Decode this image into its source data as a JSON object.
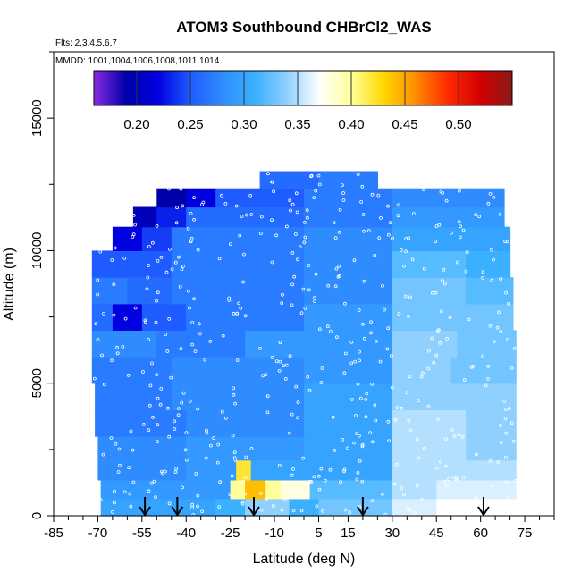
{
  "chart_data": {
    "type": "heatmap",
    "title": "ATOM3 Southbound CHBrCl2_WAS",
    "flights_note": "Flts: 2,3,4,5,6,7",
    "dates_note": "MMDD: 1001,1004,1006,1008,1011,1014",
    "xlabel": "Latitude (deg N)",
    "ylabel": "Altitude (m)",
    "xlim": [
      -85,
      85
    ],
    "ylim": [
      0,
      17500
    ],
    "x_ticks": [
      -85,
      -70,
      -55,
      -40,
      -25,
      -10,
      5,
      15,
      30,
      45,
      60,
      75
    ],
    "y_ticks": [
      0,
      5000,
      10000,
      15000
    ],
    "colorbar": {
      "min": 0.16,
      "max": 0.55,
      "ticks": [
        0.2,
        0.25,
        0.3,
        0.35,
        0.4,
        0.45,
        0.5
      ],
      "tick_labels": [
        "0.20",
        "0.25",
        "0.30",
        "0.35",
        "0.40",
        "0.45",
        "0.50"
      ],
      "colors": [
        "#8a2be2",
        "#0000a8",
        "#0000e0",
        "#1e5cff",
        "#2f8cff",
        "#3ab0ff",
        "#8fd0ff",
        "#ffffff",
        "#ffff99",
        "#ffd700",
        "#ff8c00",
        "#ff2a00",
        "#d40000",
        "#8b1a1a"
      ]
    },
    "profile_arrows_lat": [
      -54,
      -43,
      -17,
      20,
      61
    ],
    "bands": [
      {
        "alt": 300,
        "segments": [
          [
            -69,
            -55,
            0.3
          ],
          [
            -55,
            -30,
            0.3
          ],
          [
            -30,
            -20,
            0.31
          ],
          [
            -20,
            -5,
            0.34
          ],
          [
            -5,
            5,
            0.31
          ],
          [
            5,
            30,
            0.33
          ],
          [
            30,
            45,
            0.36
          ],
          [
            45,
            72,
            0.37
          ]
        ]
      },
      {
        "alt": 1000,
        "segments": [
          [
            -69,
            -55,
            0.29
          ],
          [
            -55,
            -25,
            0.29
          ],
          [
            -25,
            -20,
            0.4
          ],
          [
            -20,
            -13,
            0.44
          ],
          [
            -13,
            -8,
            0.4
          ],
          [
            -8,
            2,
            0.38
          ],
          [
            2,
            30,
            0.32
          ],
          [
            30,
            45,
            0.35
          ],
          [
            45,
            72,
            0.36
          ]
        ]
      },
      {
        "alt": 1700,
        "segments": [
          [
            -70,
            -40,
            0.28
          ],
          [
            -40,
            -23,
            0.29
          ],
          [
            -23,
            -18,
            0.42
          ],
          [
            -18,
            30,
            0.3
          ],
          [
            30,
            50,
            0.35
          ],
          [
            50,
            72,
            0.35
          ]
        ]
      },
      {
        "alt": 2500,
        "segments": [
          [
            -70,
            -40,
            0.28
          ],
          [
            -40,
            0,
            0.29
          ],
          [
            0,
            30,
            0.3
          ],
          [
            30,
            55,
            0.35
          ],
          [
            55,
            72,
            0.34
          ]
        ]
      },
      {
        "alt": 3500,
        "segments": [
          [
            -71,
            -40,
            0.27
          ],
          [
            -40,
            0,
            0.28
          ],
          [
            0,
            30,
            0.3
          ],
          [
            30,
            55,
            0.35
          ],
          [
            55,
            72,
            0.34
          ]
        ]
      },
      {
        "alt": 4500,
        "segments": [
          [
            -71,
            -45,
            0.27
          ],
          [
            -45,
            0,
            0.28
          ],
          [
            0,
            30,
            0.3
          ],
          [
            30,
            55,
            0.34
          ],
          [
            55,
            72,
            0.34
          ]
        ]
      },
      {
        "alt": 5500,
        "segments": [
          [
            -72,
            -45,
            0.27
          ],
          [
            -45,
            0,
            0.28
          ],
          [
            0,
            30,
            0.29
          ],
          [
            30,
            50,
            0.34
          ],
          [
            50,
            72,
            0.33
          ]
        ]
      },
      {
        "alt": 6500,
        "segments": [
          [
            -72,
            -50,
            0.28
          ],
          [
            -50,
            -20,
            0.27
          ],
          [
            -20,
            30,
            0.29
          ],
          [
            30,
            52,
            0.34
          ],
          [
            52,
            72,
            0.33
          ]
        ]
      },
      {
        "alt": 7500,
        "segments": [
          [
            -72,
            -65,
            0.26
          ],
          [
            -65,
            -55,
            0.22
          ],
          [
            -55,
            -40,
            0.25
          ],
          [
            -40,
            0,
            0.27
          ],
          [
            0,
            30,
            0.29
          ],
          [
            30,
            50,
            0.33
          ],
          [
            50,
            71,
            0.33
          ]
        ]
      },
      {
        "alt": 8500,
        "segments": [
          [
            -72,
            -60,
            0.27
          ],
          [
            -60,
            -45,
            0.26
          ],
          [
            -45,
            0,
            0.27
          ],
          [
            0,
            30,
            0.28
          ],
          [
            30,
            55,
            0.33
          ],
          [
            55,
            71,
            0.32
          ]
        ]
      },
      {
        "alt": 9500,
        "segments": [
          [
            -72,
            -60,
            0.25
          ],
          [
            -60,
            -45,
            0.25
          ],
          [
            -45,
            0,
            0.27
          ],
          [
            0,
            30,
            0.28
          ],
          [
            30,
            55,
            0.32
          ],
          [
            55,
            70,
            0.31
          ]
        ]
      },
      {
        "alt": 10500,
        "segments": [
          [
            -65,
            -55,
            0.22
          ],
          [
            -55,
            -45,
            0.24
          ],
          [
            -45,
            0,
            0.27
          ],
          [
            0,
            30,
            0.28
          ],
          [
            30,
            60,
            0.3
          ],
          [
            60,
            70,
            0.3
          ]
        ]
      },
      {
        "alt": 11300,
        "segments": [
          [
            -58,
            -50,
            0.2
          ],
          [
            -50,
            -40,
            0.23
          ],
          [
            -40,
            0,
            0.26
          ],
          [
            0,
            30,
            0.27
          ],
          [
            30,
            55,
            0.29
          ],
          [
            55,
            68,
            0.29
          ]
        ]
      },
      {
        "alt": 12000,
        "segments": [
          [
            -50,
            -40,
            0.19
          ],
          [
            -40,
            -30,
            0.22
          ],
          [
            -30,
            0,
            0.25
          ],
          [
            0,
            30,
            0.27
          ],
          [
            30,
            55,
            0.28
          ],
          [
            55,
            68,
            0.28
          ]
        ]
      },
      {
        "alt": 12700,
        "segments": [
          [
            -15,
            5,
            0.26
          ],
          [
            5,
            25,
            0.27
          ]
        ]
      }
    ]
  }
}
